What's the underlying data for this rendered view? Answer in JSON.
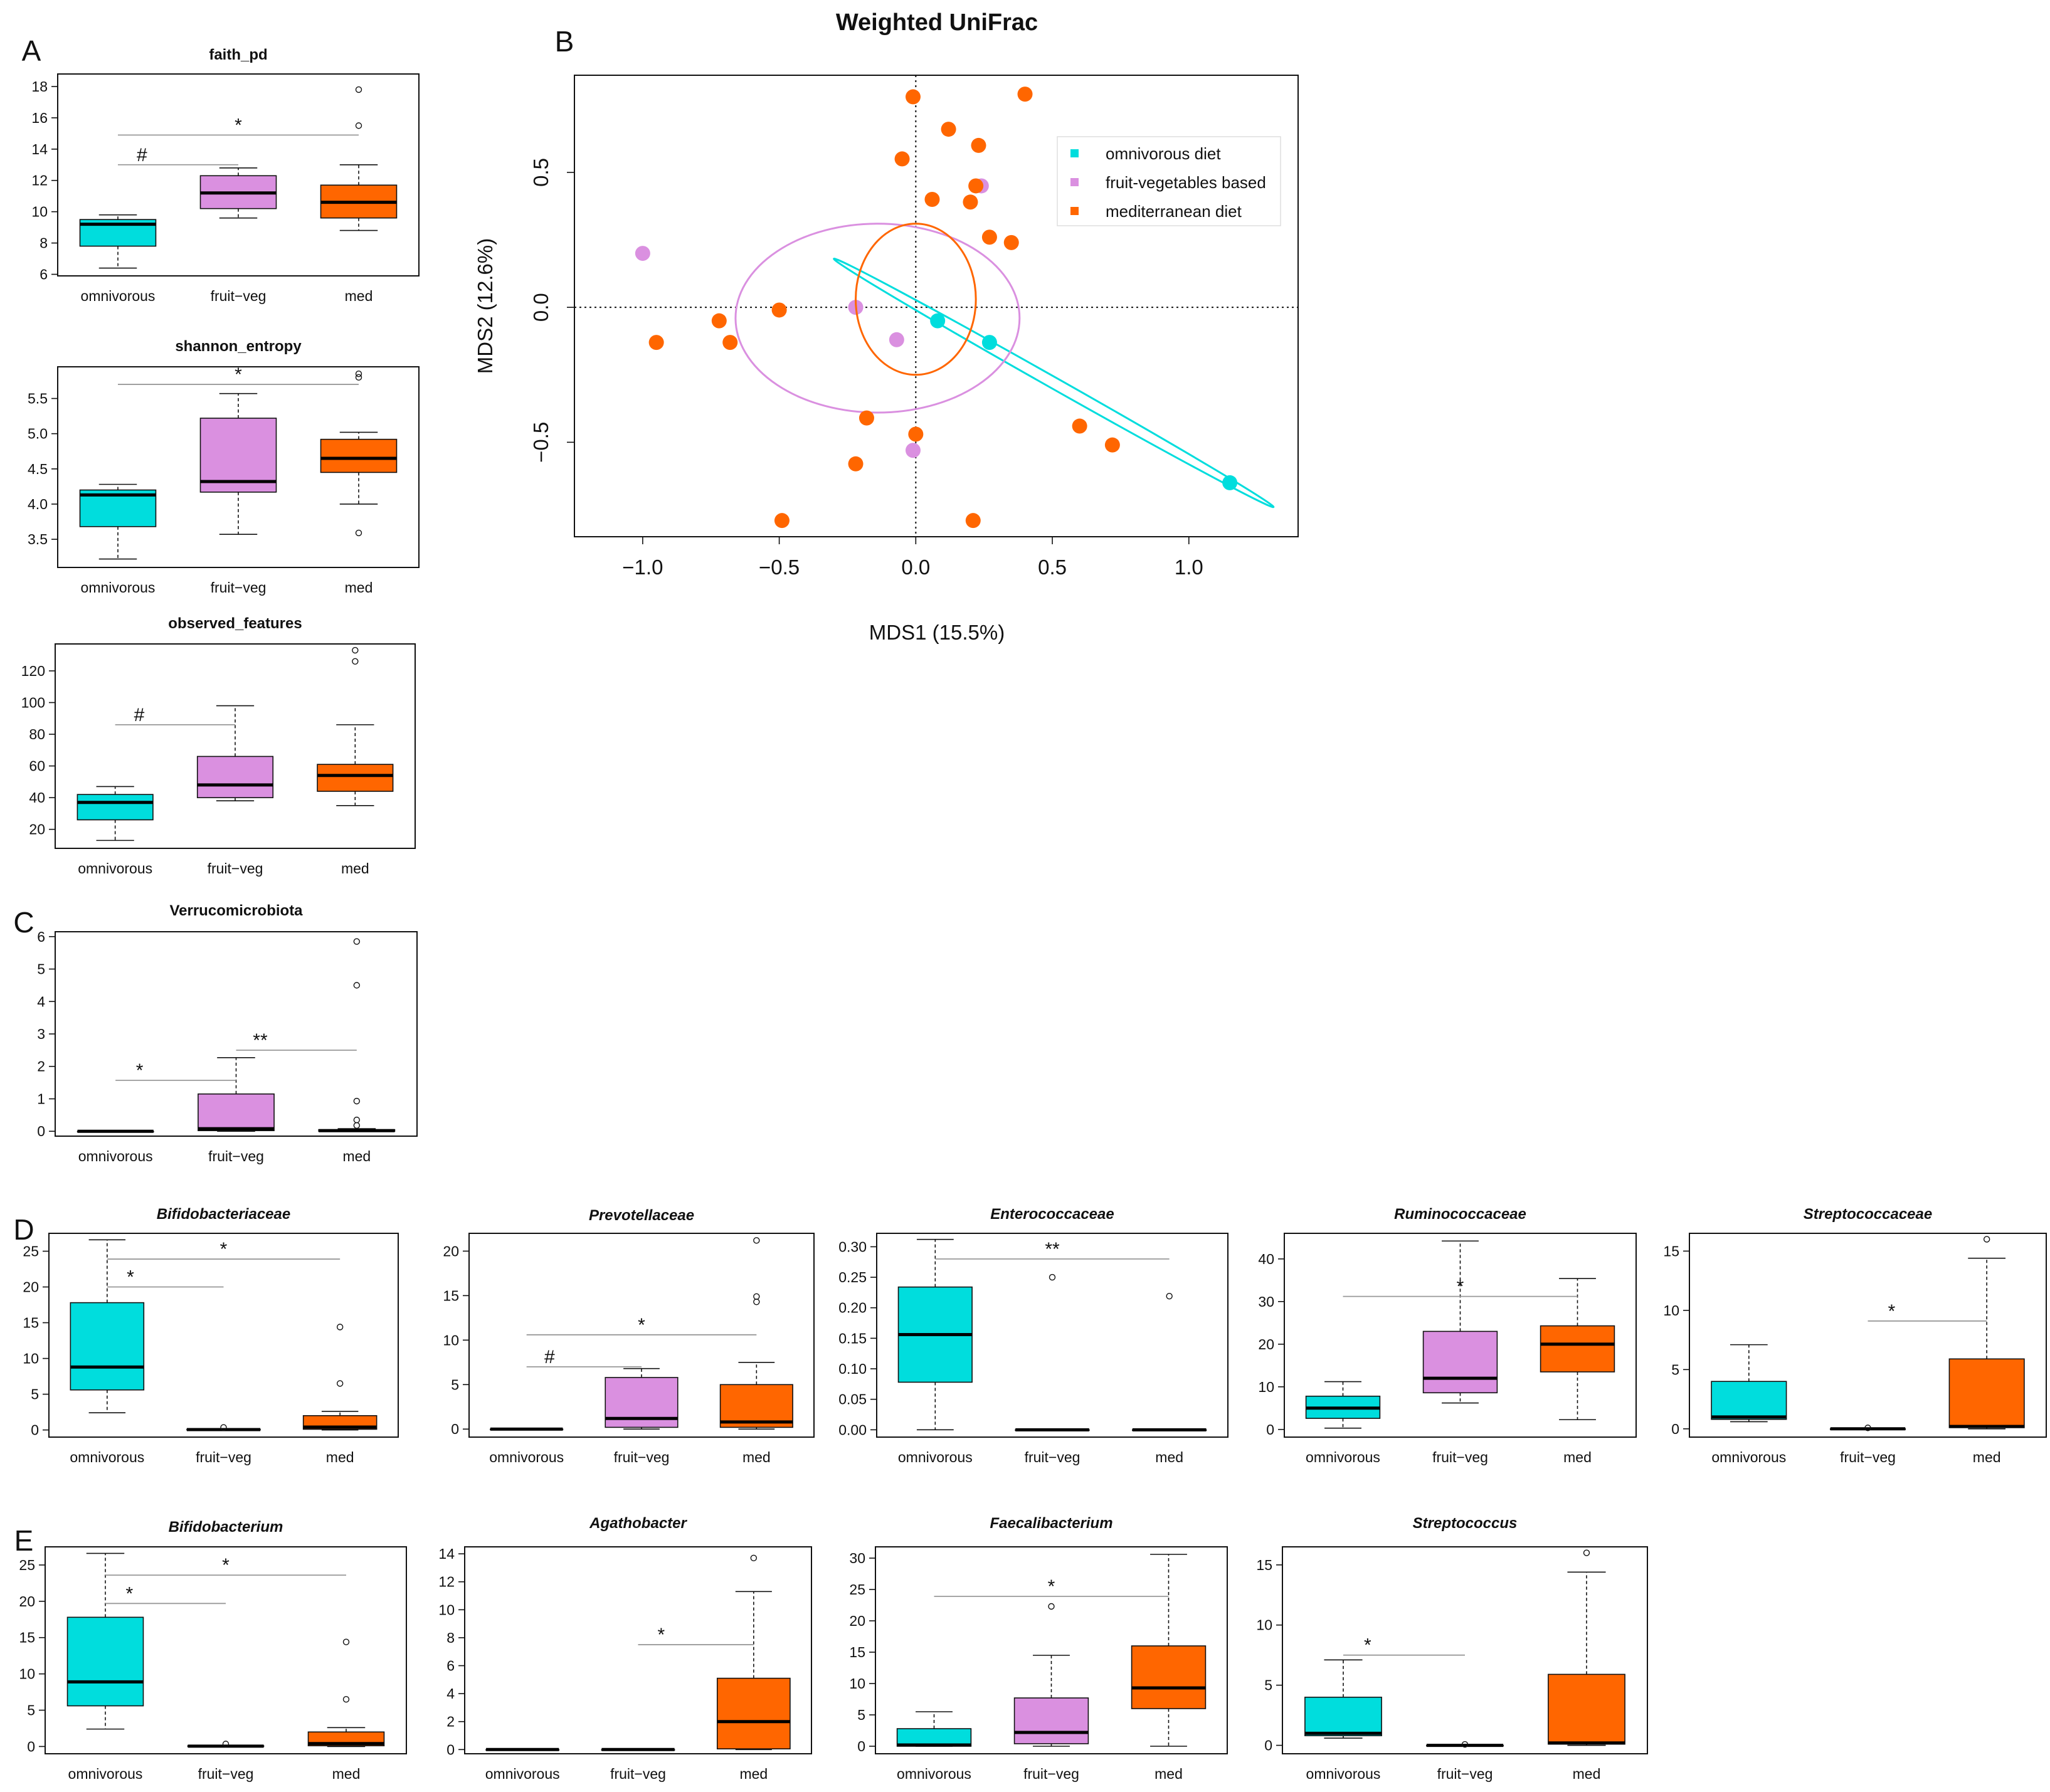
{
  "colors": {
    "omnivorous": "#00DDDD",
    "fruit_veg": "#DA90E0",
    "med": "#FF6600"
  },
  "chart_data": [
    {
      "id": "A1",
      "panel": "A",
      "type": "box",
      "title": "faith_pd",
      "italic": false,
      "categories": [
        "omnivorous",
        "fruit−veg",
        "med"
      ],
      "ylim": [
        5.9,
        18.8
      ],
      "yticks": [
        6,
        8,
        10,
        12,
        14,
        16,
        18
      ],
      "ytick_labels": [
        "6",
        "8",
        "10",
        "12",
        "14",
        "16",
        "18"
      ],
      "boxes": [
        {
          "q1": 7.8,
          "med": 9.2,
          "q3": 9.5,
          "wlo": 6.4,
          "whi": 9.8,
          "out": []
        },
        {
          "q1": 10.2,
          "med": 11.2,
          "q3": 12.3,
          "wlo": 9.6,
          "whi": 12.8,
          "out": []
        },
        {
          "q1": 9.6,
          "med": 10.6,
          "q3": 11.7,
          "wlo": 8.8,
          "whi": 13.0,
          "out": [
            15.5,
            17.8
          ]
        }
      ],
      "brackets": [
        {
          "g1": 0,
          "g2": 1,
          "y": 13.0,
          "label": "#"
        },
        {
          "g1": 0,
          "g2": 2,
          "y": 14.9,
          "label": "*"
        }
      ]
    },
    {
      "id": "A2",
      "panel": "",
      "type": "box",
      "title": "shannon_entropy",
      "italic": false,
      "categories": [
        "omnivorous",
        "fruit−veg",
        "med"
      ],
      "ylim": [
        3.1,
        5.95
      ],
      "yticks": [
        3.5,
        4.0,
        4.5,
        5.0,
        5.5
      ],
      "ytick_labels": [
        "3.5",
        "4.0",
        "4.5",
        "5.0",
        "5.5"
      ],
      "boxes": [
        {
          "q1": 3.68,
          "med": 4.13,
          "q3": 4.2,
          "wlo": 3.22,
          "whi": 4.28,
          "out": []
        },
        {
          "q1": 4.17,
          "med": 4.32,
          "q3": 5.22,
          "wlo": 3.57,
          "whi": 5.57,
          "out": []
        },
        {
          "q1": 4.45,
          "med": 4.65,
          "q3": 4.92,
          "wlo": 4.0,
          "whi": 5.02,
          "out": [
            3.59,
            5.8,
            5.85
          ]
        }
      ],
      "brackets": [
        {
          "g1": 0,
          "g2": 2,
          "y": 5.7,
          "label": "*"
        }
      ]
    },
    {
      "id": "A3",
      "panel": "",
      "type": "box",
      "title": "observed_features",
      "italic": false,
      "categories": [
        "omnivorous",
        "fruit−veg",
        "med"
      ],
      "ylim": [
        8,
        137
      ],
      "yticks": [
        20,
        40,
        60,
        80,
        100,
        120
      ],
      "ytick_labels": [
        "20",
        "40",
        "60",
        "80",
        "100",
        "120"
      ],
      "boxes": [
        {
          "q1": 26,
          "med": 37,
          "q3": 42,
          "wlo": 13,
          "whi": 47,
          "out": []
        },
        {
          "q1": 40,
          "med": 48,
          "q3": 66,
          "wlo": 38,
          "whi": 98,
          "out": []
        },
        {
          "q1": 44,
          "med": 54,
          "q3": 61,
          "wlo": 35,
          "whi": 86,
          "out": [
            126,
            133
          ]
        }
      ],
      "brackets": [
        {
          "g1": 0,
          "g2": 1,
          "y": 86,
          "label": "#"
        }
      ]
    },
    {
      "id": "C",
      "panel": "C",
      "type": "box",
      "title": "Verrucomicrobiota",
      "italic": false,
      "categories": [
        "omnivorous",
        "fruit−veg",
        "med"
      ],
      "ylim": [
        -0.15,
        6.15
      ],
      "yticks": [
        0,
        1,
        2,
        3,
        4,
        5,
        6
      ],
      "ytick_labels": [
        "0",
        "1",
        "2",
        "3",
        "4",
        "5",
        "6"
      ],
      "boxes": [
        {
          "q1": 0,
          "med": 0,
          "q3": 0,
          "wlo": 0,
          "whi": 0,
          "out": []
        },
        {
          "q1": 0.02,
          "med": 0.08,
          "q3": 1.15,
          "wlo": 0,
          "whi": 2.27,
          "out": []
        },
        {
          "q1": 0,
          "med": 0.02,
          "q3": 0.05,
          "wlo": 0,
          "whi": 0.08,
          "out": [
            0.18,
            0.35,
            0.93,
            4.5,
            5.85
          ]
        }
      ],
      "brackets": [
        {
          "g1": 0,
          "g2": 1,
          "y": 1.57,
          "label": "*"
        },
        {
          "g1": 1,
          "g2": 2,
          "y": 2.5,
          "label": "**"
        }
      ]
    },
    {
      "id": "D1",
      "panel": "D",
      "type": "box",
      "title": "Bifidobacteriaceae",
      "italic": true,
      "categories": [
        "omnivorous",
        "fruit−veg",
        "med"
      ],
      "ylim": [
        -1,
        27.5
      ],
      "yticks": [
        0,
        5,
        10,
        15,
        20,
        25
      ],
      "ytick_labels": [
        "0",
        "5",
        "10",
        "15",
        "20",
        "25"
      ],
      "boxes": [
        {
          "q1": 5.6,
          "med": 8.8,
          "q3": 17.8,
          "wlo": 2.4,
          "whi": 26.6,
          "out": []
        },
        {
          "q1": 0,
          "med": 0.05,
          "q3": 0.1,
          "wlo": 0,
          "whi": 0.1,
          "out": [
            0.35
          ]
        },
        {
          "q1": 0.1,
          "med": 0.4,
          "q3": 2.0,
          "wlo": 0,
          "whi": 2.6,
          "out": [
            6.5,
            14.4
          ]
        }
      ],
      "brackets": [
        {
          "g1": 0,
          "g2": 1,
          "y": 20.0,
          "label": "*"
        },
        {
          "g1": 0,
          "g2": 2,
          "y": 23.9,
          "label": "*"
        }
      ]
    },
    {
      "id": "D2",
      "panel": "",
      "type": "box",
      "title": "Prevotellaceae",
      "italic": true,
      "categories": [
        "omnivorous",
        "fruit−veg",
        "med"
      ],
      "ylim": [
        -0.9,
        22
      ],
      "yticks": [
        0,
        5,
        10,
        15,
        20
      ],
      "ytick_labels": [
        "0",
        "5",
        "10",
        "15",
        "20"
      ],
      "boxes": [
        {
          "q1": 0,
          "med": 0,
          "q3": 0,
          "wlo": 0,
          "whi": 0,
          "out": []
        },
        {
          "q1": 0.2,
          "med": 1.2,
          "q3": 5.8,
          "wlo": 0,
          "whi": 6.8,
          "out": []
        },
        {
          "q1": 0.2,
          "med": 0.8,
          "q3": 5.0,
          "wlo": 0,
          "whi": 7.5,
          "out": [
            14.3,
            14.9,
            21.2
          ]
        }
      ],
      "brackets": [
        {
          "g1": 0,
          "g2": 1,
          "y": 7.0,
          "label": "#"
        },
        {
          "g1": 0,
          "g2": 2,
          "y": 10.6,
          "label": "*"
        }
      ]
    },
    {
      "id": "D3",
      "panel": "",
      "type": "box",
      "title": "Enterococcaceae",
      "italic": true,
      "categories": [
        "omnivorous",
        "fruit−veg",
        "med"
      ],
      "ylim": [
        -0.012,
        0.322
      ],
      "yticks": [
        0,
        0.05,
        0.1,
        0.15,
        0.2,
        0.25,
        0.3
      ],
      "ytick_labels": [
        "0.00",
        "0.05",
        "0.10",
        "0.15",
        "0.20",
        "0.25",
        "0.30"
      ],
      "boxes": [
        {
          "q1": 0.078,
          "med": 0.156,
          "q3": 0.234,
          "wlo": 0.0,
          "whi": 0.312,
          "out": []
        },
        {
          "q1": 0,
          "med": 0,
          "q3": 0,
          "wlo": 0,
          "whi": 0,
          "out": [
            0.25
          ]
        },
        {
          "q1": 0,
          "med": 0,
          "q3": 0,
          "wlo": 0,
          "whi": 0,
          "out": [
            0.219
          ]
        }
      ],
      "brackets": [
        {
          "g1": 0,
          "g2": 2,
          "y": 0.28,
          "label": "**"
        }
      ]
    },
    {
      "id": "D4",
      "panel": "",
      "type": "box",
      "title": "Ruminococcaceae",
      "italic": true,
      "categories": [
        "omnivorous",
        "fruit−veg",
        "med"
      ],
      "ylim": [
        -1.8,
        46
      ],
      "yticks": [
        0,
        10,
        20,
        30,
        40
      ],
      "ytick_labels": [
        "0",
        "10",
        "20",
        "30",
        "40"
      ],
      "boxes": [
        {
          "q1": 2.6,
          "med": 5.0,
          "q3": 7.8,
          "wlo": 0.3,
          "whi": 11.2,
          "out": []
        },
        {
          "q1": 8.6,
          "med": 12.0,
          "q3": 23.0,
          "wlo": 6.2,
          "whi": 44.2,
          "out": []
        },
        {
          "q1": 13.5,
          "med": 20.0,
          "q3": 24.3,
          "wlo": 2.3,
          "whi": 35.4,
          "out": []
        }
      ],
      "brackets": [
        {
          "g1": 0,
          "g2": 2,
          "y": 31.2,
          "label": "*"
        }
      ]
    },
    {
      "id": "D5",
      "panel": "",
      "type": "box",
      "title": "Streptococcaceae",
      "italic": true,
      "categories": [
        "omnivorous",
        "fruit−veg",
        "med"
      ],
      "ylim": [
        -0.7,
        16.5
      ],
      "yticks": [
        0,
        5,
        10,
        15
      ],
      "ytick_labels": [
        "0",
        "5",
        "10",
        "15"
      ],
      "boxes": [
        {
          "q1": 0.8,
          "med": 1.0,
          "q3": 4.0,
          "wlo": 0.6,
          "whi": 7.1,
          "out": []
        },
        {
          "q1": 0,
          "med": 0,
          "q3": 0,
          "wlo": 0,
          "whi": 0,
          "out": [
            0.08
          ]
        },
        {
          "q1": 0.1,
          "med": 0.2,
          "q3": 5.9,
          "wlo": 0,
          "whi": 14.4,
          "out": [
            16.0
          ]
        }
      ],
      "brackets": [
        {
          "g1": 1,
          "g2": 2,
          "y": 9.1,
          "label": "*"
        }
      ]
    },
    {
      "id": "E1",
      "panel": "E",
      "type": "box",
      "title": "Bifidobacterium",
      "italic": true,
      "categories": [
        "omnivorous",
        "fruit−veg",
        "med"
      ],
      "ylim": [
        -1,
        27.5
      ],
      "yticks": [
        0,
        5,
        10,
        15,
        20,
        25
      ],
      "ytick_labels": [
        "0",
        "5",
        "10",
        "15",
        "20",
        "25"
      ],
      "boxes": [
        {
          "q1": 5.6,
          "med": 8.9,
          "q3": 17.8,
          "wlo": 2.4,
          "whi": 26.6,
          "out": []
        },
        {
          "q1": 0,
          "med": 0.05,
          "q3": 0.1,
          "wlo": 0,
          "whi": 0.1,
          "out": [
            0.35
          ]
        },
        {
          "q1": 0.1,
          "med": 0.4,
          "q3": 2.0,
          "wlo": 0,
          "whi": 2.6,
          "out": [
            6.5,
            14.4
          ]
        }
      ],
      "brackets": [
        {
          "g1": 0,
          "g2": 1,
          "y": 19.7,
          "label": "*"
        },
        {
          "g1": 0,
          "g2": 2,
          "y": 23.6,
          "label": "*"
        }
      ]
    },
    {
      "id": "E2",
      "panel": "",
      "type": "box",
      "title": "Agathobacter",
      "italic": true,
      "categories": [
        "omnivorous",
        "fruit−veg",
        "med"
      ],
      "ylim": [
        -0.3,
        14.5
      ],
      "yticks": [
        0,
        2,
        4,
        6,
        8,
        10,
        12,
        14
      ],
      "ytick_labels": [
        "0",
        "2",
        "4",
        "6",
        "8",
        "10",
        "12",
        "14"
      ],
      "boxes": [
        {
          "q1": 0,
          "med": 0,
          "q3": 0,
          "wlo": 0,
          "whi": 0,
          "out": []
        },
        {
          "q1": 0,
          "med": 0,
          "q3": 0,
          "wlo": 0,
          "whi": 0,
          "out": []
        },
        {
          "q1": 0.05,
          "med": 2.0,
          "q3": 5.1,
          "wlo": 0,
          "whi": 11.3,
          "out": [
            13.7
          ]
        }
      ],
      "brackets": [
        {
          "g1": 1,
          "g2": 2,
          "y": 7.5,
          "label": "*"
        }
      ]
    },
    {
      "id": "E3",
      "panel": "",
      "type": "box",
      "title": "Faecalibacterium",
      "italic": true,
      "categories": [
        "omnivorous",
        "fruit−veg",
        "med"
      ],
      "ylim": [
        -1.2,
        31.8
      ],
      "yticks": [
        0,
        5,
        10,
        15,
        20,
        25,
        30
      ],
      "ytick_labels": [
        "0",
        "5",
        "10",
        "15",
        "20",
        "25",
        "30"
      ],
      "boxes": [
        {
          "q1": 0,
          "med": 0.2,
          "q3": 2.8,
          "wlo": 0,
          "whi": 5.5,
          "out": []
        },
        {
          "q1": 0.4,
          "med": 2.2,
          "q3": 7.7,
          "wlo": 0,
          "whi": 14.5,
          "out": [
            22.3
          ]
        },
        {
          "q1": 6.0,
          "med": 9.3,
          "q3": 16.0,
          "wlo": 0,
          "whi": 30.6,
          "out": []
        }
      ],
      "brackets": [
        {
          "g1": 0,
          "g2": 2,
          "y": 23.9,
          "label": "*"
        }
      ]
    },
    {
      "id": "E4",
      "panel": "",
      "type": "box",
      "title": "Streptococcus",
      "italic": true,
      "categories": [
        "omnivorous",
        "fruit−veg",
        "med"
      ],
      "ylim": [
        -0.7,
        16.5
      ],
      "yticks": [
        0,
        5,
        10,
        15
      ],
      "ytick_labels": [
        "0",
        "5",
        "10",
        "15"
      ],
      "boxes": [
        {
          "q1": 0.8,
          "med": 1.0,
          "q3": 4.0,
          "wlo": 0.6,
          "whi": 7.1,
          "out": []
        },
        {
          "q1": 0,
          "med": 0,
          "q3": 0,
          "wlo": 0,
          "whi": 0,
          "out": [
            0.08
          ]
        },
        {
          "q1": 0.1,
          "med": 0.2,
          "q3": 5.9,
          "wlo": 0,
          "whi": 14.4,
          "out": [
            16.0
          ]
        }
      ],
      "brackets": [
        {
          "g1": 0,
          "g2": 1,
          "y": 7.5,
          "label": "*"
        }
      ]
    },
    {
      "id": "B",
      "panel": "B",
      "type": "scatter",
      "title": "Weighted UniFrac",
      "xlabel": "MDS1 (15.5%)",
      "ylabel": "MDS2 (12.6%)",
      "xlim": [
        -1.25,
        1.4
      ],
      "ylim": [
        -0.85,
        0.86
      ],
      "xticks": [
        -1.0,
        -0.5,
        0.0,
        0.5,
        1.0
      ],
      "xtick_labels": [
        "−1.0",
        "−0.5",
        "0.0",
        "0.5",
        "1.0"
      ],
      "yticks": [
        -0.5,
        0.0,
        0.5
      ],
      "ytick_labels": [
        "−0.5",
        "0.0",
        "0.5"
      ],
      "legend": {
        "position": "top-right",
        "entries": [
          "omnivorous diet",
          "fruit-vegetables based",
          "mediterranean diet"
        ]
      },
      "series": [
        {
          "name": "omnivorous diet",
          "group": "omnivorous",
          "points": [
            [
              0.08,
              -0.05
            ],
            [
              0.27,
              -0.13
            ],
            [
              1.15,
              -0.65
            ]
          ],
          "ellipse": {
            "cx": 0.5,
            "cy": -0.24,
            "a": 0.94,
            "b": 0.014,
            "angle": -30
          }
        },
        {
          "name": "fruit-vegetables based",
          "group": "fruit_veg",
          "points": [
            [
              -1.0,
              0.2
            ],
            [
              -0.22,
              0.0
            ],
            [
              -0.07,
              -0.12
            ],
            [
              -0.01,
              -0.53
            ],
            [
              0.24,
              0.45
            ]
          ],
          "ellipse": {
            "cx": -0.14,
            "cy": -0.04,
            "a": 0.52,
            "b": 0.35,
            "angle": 0
          }
        },
        {
          "name": "mediterranean diet",
          "group": "med",
          "points": [
            [
              -0.95,
              -0.13
            ],
            [
              -0.72,
              -0.05
            ],
            [
              -0.68,
              -0.13
            ],
            [
              -0.5,
              -0.01
            ],
            [
              -0.49,
              -0.79
            ],
            [
              -0.22,
              -0.58
            ],
            [
              -0.18,
              -0.41
            ],
            [
              -0.05,
              0.55
            ],
            [
              -0.01,
              0.78
            ],
            [
              0.0,
              -0.47
            ],
            [
              0.06,
              0.4
            ],
            [
              0.12,
              0.66
            ],
            [
              0.2,
              0.39
            ],
            [
              0.22,
              0.45
            ],
            [
              0.23,
              0.6
            ],
            [
              0.21,
              -0.79
            ],
            [
              0.27,
              0.26
            ],
            [
              0.35,
              0.24
            ],
            [
              0.4,
              0.79
            ],
            [
              0.6,
              -0.44
            ],
            [
              0.72,
              -0.51
            ]
          ],
          "ellipse": {
            "cx": 0.0,
            "cy": 0.03,
            "a": 0.22,
            "b": 0.28,
            "angle": -5
          }
        }
      ]
    }
  ]
}
